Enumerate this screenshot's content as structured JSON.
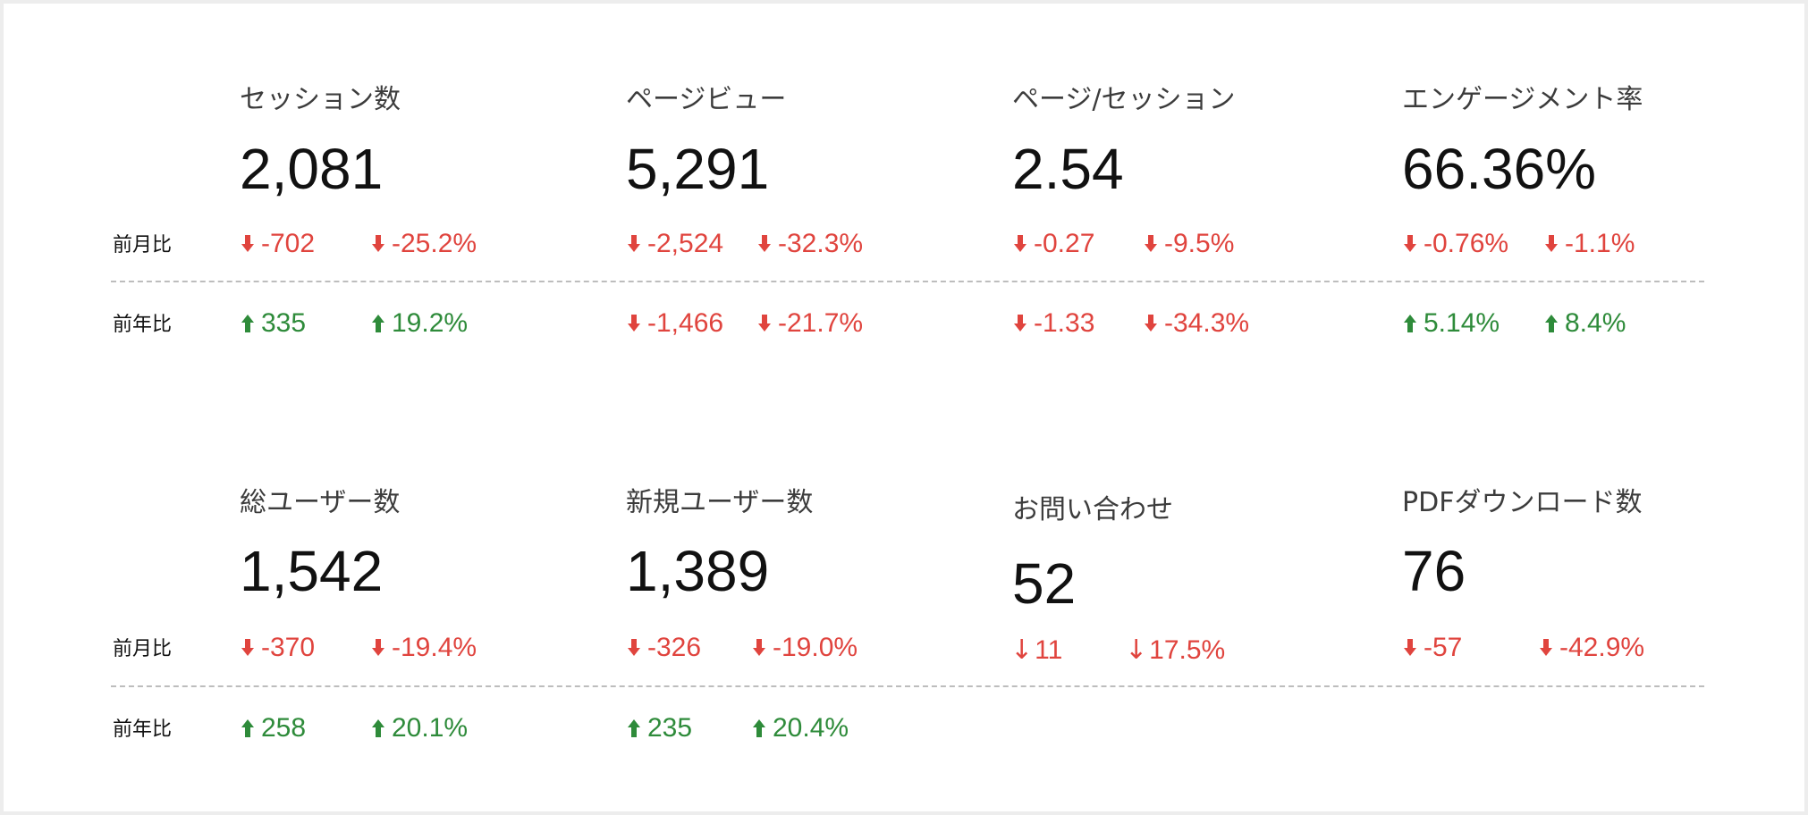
{
  "row_labels": {
    "mom": "前月比",
    "yoy": "前年比"
  },
  "colors": {
    "down": "#e0443e",
    "up": "#2e8b3a"
  },
  "metrics": [
    {
      "title": "セッション数",
      "value": "2,081",
      "mom": {
        "abs": "-702",
        "pct": "-25.2%",
        "dir": "down"
      },
      "yoy": {
        "abs": "335",
        "pct": "19.2%",
        "dir": "up"
      }
    },
    {
      "title": "ページビュー",
      "value": "5,291",
      "mom": {
        "abs": "-2,524",
        "pct": "-32.3%",
        "dir": "down"
      },
      "yoy": {
        "abs": "-1,466",
        "pct": "-21.7%",
        "dir": "down"
      }
    },
    {
      "title": "ページ/セッション",
      "value": "2.54",
      "mom": {
        "abs": "-0.27",
        "pct": "-9.5%",
        "dir": "down"
      },
      "yoy": {
        "abs": "-1.33",
        "pct": "-34.3%",
        "dir": "down"
      }
    },
    {
      "title": "エンゲージメント率",
      "value": "66.36%",
      "mom": {
        "abs": "-0.76%",
        "pct": "-1.1%",
        "dir": "down"
      },
      "yoy": {
        "abs": "5.14%",
        "pct": "8.4%",
        "dir": "up"
      }
    },
    {
      "title": "総ユーザー数",
      "value": "1,542",
      "mom": {
        "abs": "-370",
        "pct": "-19.4%",
        "dir": "down"
      },
      "yoy": {
        "abs": "258",
        "pct": "20.1%",
        "dir": "up"
      }
    },
    {
      "title": "新規ユーザー数",
      "value": "1,389",
      "mom": {
        "abs": "-326",
        "pct": "-19.0%",
        "dir": "down"
      },
      "yoy": {
        "abs": "235",
        "pct": "20.4%",
        "dir": "up"
      }
    },
    {
      "title": "お問い合わせ",
      "value": "52",
      "mom": {
        "abs": "11",
        "pct": "17.5%",
        "dir": "down"
      }
    },
    {
      "title": "PDFダウンロード数",
      "value": "76",
      "mom": {
        "abs": "-57",
        "pct": "-42.9%",
        "dir": "down"
      }
    }
  ]
}
